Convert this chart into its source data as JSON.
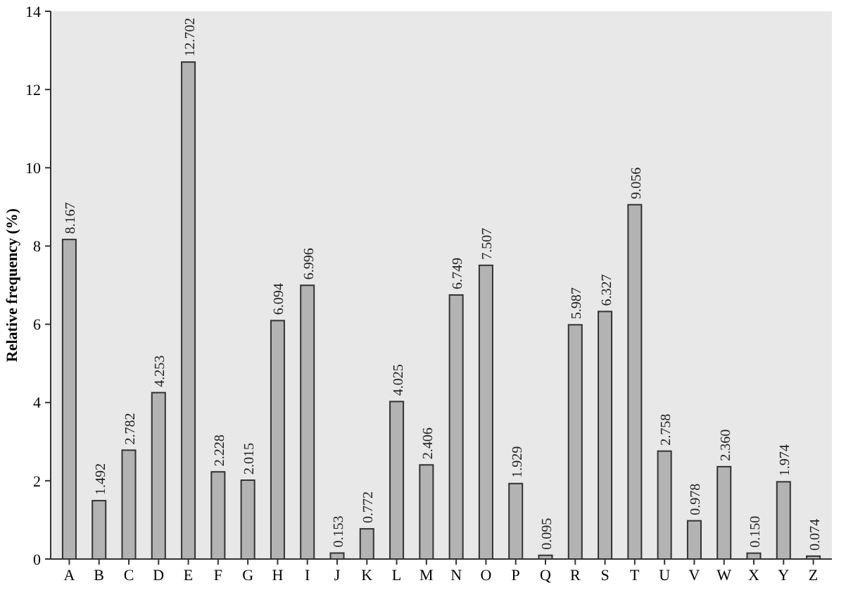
{
  "chart_data": {
    "type": "bar",
    "ylabel": "Relative frequency (%)",
    "categories": [
      "A",
      "B",
      "C",
      "D",
      "E",
      "F",
      "G",
      "H",
      "I",
      "J",
      "K",
      "L",
      "M",
      "N",
      "O",
      "P",
      "Q",
      "R",
      "S",
      "T",
      "U",
      "V",
      "W",
      "X",
      "Y",
      "Z"
    ],
    "values": [
      8.167,
      1.492,
      2.782,
      4.253,
      12.702,
      2.228,
      2.015,
      6.094,
      6.996,
      0.153,
      0.772,
      4.025,
      2.406,
      6.749,
      7.507,
      1.929,
      0.095,
      5.987,
      6.327,
      9.056,
      2.758,
      0.978,
      2.36,
      0.15,
      1.974,
      0.074
    ],
    "value_labels": [
      "8.167",
      "1.492",
      "2.782",
      "4.253",
      "12.702",
      "2.228",
      "2.015",
      "6.094",
      "6.996",
      "0.153",
      "0.772",
      "4.025",
      "2.406",
      "6.749",
      "7.507",
      "1.929",
      "0.095",
      "5.987",
      "6.327",
      "9.056",
      "2.758",
      "0.978",
      "2.360",
      "0.150",
      "1.974",
      "0.074"
    ],
    "color": "#b3b3b3",
    "ylim": [
      0,
      14
    ],
    "yticks": [
      0,
      2,
      4,
      6,
      8,
      10,
      12,
      14
    ],
    "grid": false
  }
}
